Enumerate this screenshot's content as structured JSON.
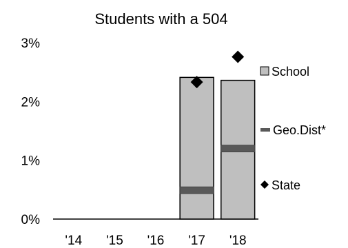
{
  "chart_data": {
    "type": "bar",
    "title": "Students with a 504",
    "categories": [
      "'14",
      "'15",
      "'16",
      "'17",
      "'18"
    ],
    "ylim": [
      0,
      3
    ],
    "y_unit": "%",
    "y_ticks": [
      {
        "value": 0,
        "label": "0%"
      },
      {
        "value": 1,
        "label": "1%"
      },
      {
        "value": 2,
        "label": "2%"
      },
      {
        "value": 3,
        "label": "3%"
      }
    ],
    "series": [
      {
        "name": "School",
        "kind": "bar",
        "color": "#bfbfbf",
        "values": [
          null,
          null,
          null,
          2.41,
          2.36
        ]
      },
      {
        "name": "Geo.Dist*",
        "kind": "marker-line",
        "color": "#595959",
        "values": [
          null,
          null,
          null,
          0.49,
          1.2
        ]
      },
      {
        "name": "State",
        "kind": "marker-diamond",
        "color": "#000000",
        "values": [
          null,
          null,
          null,
          2.33,
          2.76
        ]
      }
    ],
    "grid": false,
    "legend_position": "right"
  }
}
